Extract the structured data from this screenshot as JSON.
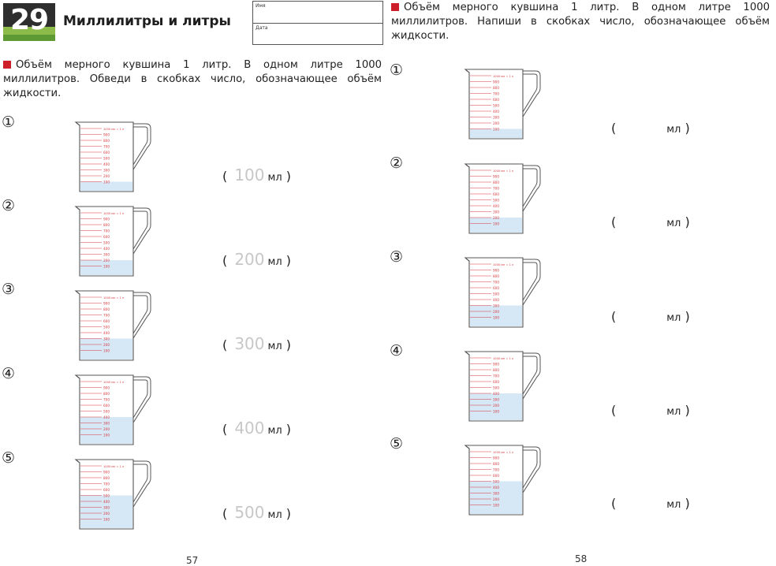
{
  "header": {
    "lesson_number": "29",
    "lesson_title": "Миллилитры и литры",
    "name_label": "Имя",
    "date_label": "Дата"
  },
  "left": {
    "instruction": "Объём мерного кувшина 1 литр. В одном литре 1000 миллилитров. Обведи в скобках число, обозначающее объём жидкости.",
    "items": [
      {
        "label": "①",
        "answer": "100",
        "unit": "мл",
        "fill_ml": 100
      },
      {
        "label": "②",
        "answer": "200",
        "unit": "мл",
        "fill_ml": 200
      },
      {
        "label": "③",
        "answer": "300",
        "unit": "мл",
        "fill_ml": 300
      },
      {
        "label": "④",
        "answer": "400",
        "unit": "мл",
        "fill_ml": 400
      },
      {
        "label": "⑤",
        "answer": "500",
        "unit": "мл",
        "fill_ml": 500
      }
    ],
    "page_number": "57"
  },
  "right": {
    "instruction": "Объём мерного кувшина 1 литр. В одном литре 1000 миллилитров. Напиши в скобках число, обозначающее объём жидкости.",
    "items": [
      {
        "label": "①",
        "unit": "мл",
        "fill_ml": 100
      },
      {
        "label": "②",
        "unit": "мл",
        "fill_ml": 200
      },
      {
        "label": "③",
        "unit": "мл",
        "fill_ml": 300
      },
      {
        "label": "④",
        "unit": "мл",
        "fill_ml": 400
      },
      {
        "label": "⑤",
        "unit": "мл",
        "fill_ml": 500
      }
    ],
    "page_number": "58"
  },
  "jug_scale": {
    "top_label": "1000 мл = 1 л",
    "ticks": [
      "900",
      "800",
      "700",
      "600",
      "500",
      "400",
      "300",
      "200",
      "100"
    ]
  },
  "colors": {
    "accent_square": "#cc1f2a",
    "water": "#d6e7f5",
    "scale_red": "#d9393f",
    "badge_green": "#8dbb4a"
  }
}
